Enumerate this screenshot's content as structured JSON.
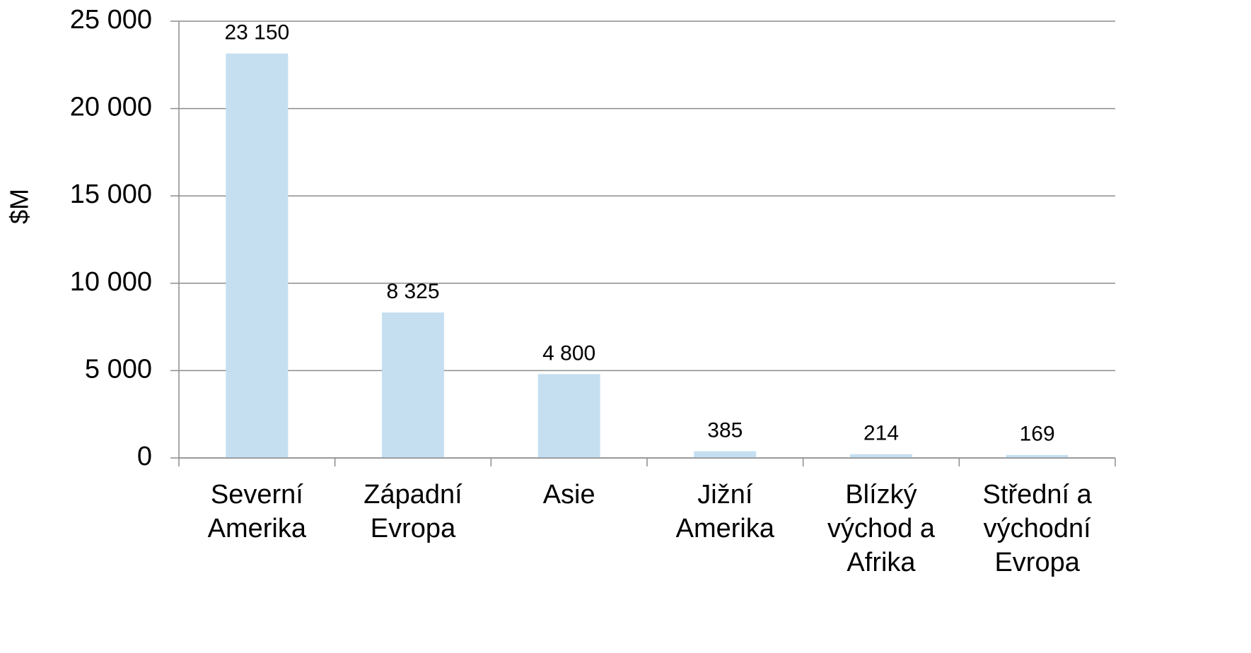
{
  "chart_data": {
    "type": "bar",
    "y_label": "$M",
    "categories": [
      "Severní Amerika",
      "Západní Evropa",
      "Asie",
      "Jižní Amerika",
      "Blízký východ a Afrika",
      "Střední a východní Evropa"
    ],
    "values": [
      23150,
      8325,
      4800,
      385,
      214,
      169
    ],
    "value_labels": [
      "23 150",
      "8 325",
      "4 800",
      "385",
      "214",
      "169"
    ],
    "color": "#c5dff1",
    "ylim": [
      0,
      25000
    ],
    "yticks": [
      0,
      {
        "value": 5000,
        "label": "5 000"
      },
      {
        "value": 10000,
        "label": "10 000"
      },
      {
        "value": 15000,
        "label": "15 000"
      },
      {
        "value": 20000,
        "label": "20 000"
      },
      {
        "value": 25000,
        "label": "25 000"
      }
    ],
    "grid": true
  }
}
